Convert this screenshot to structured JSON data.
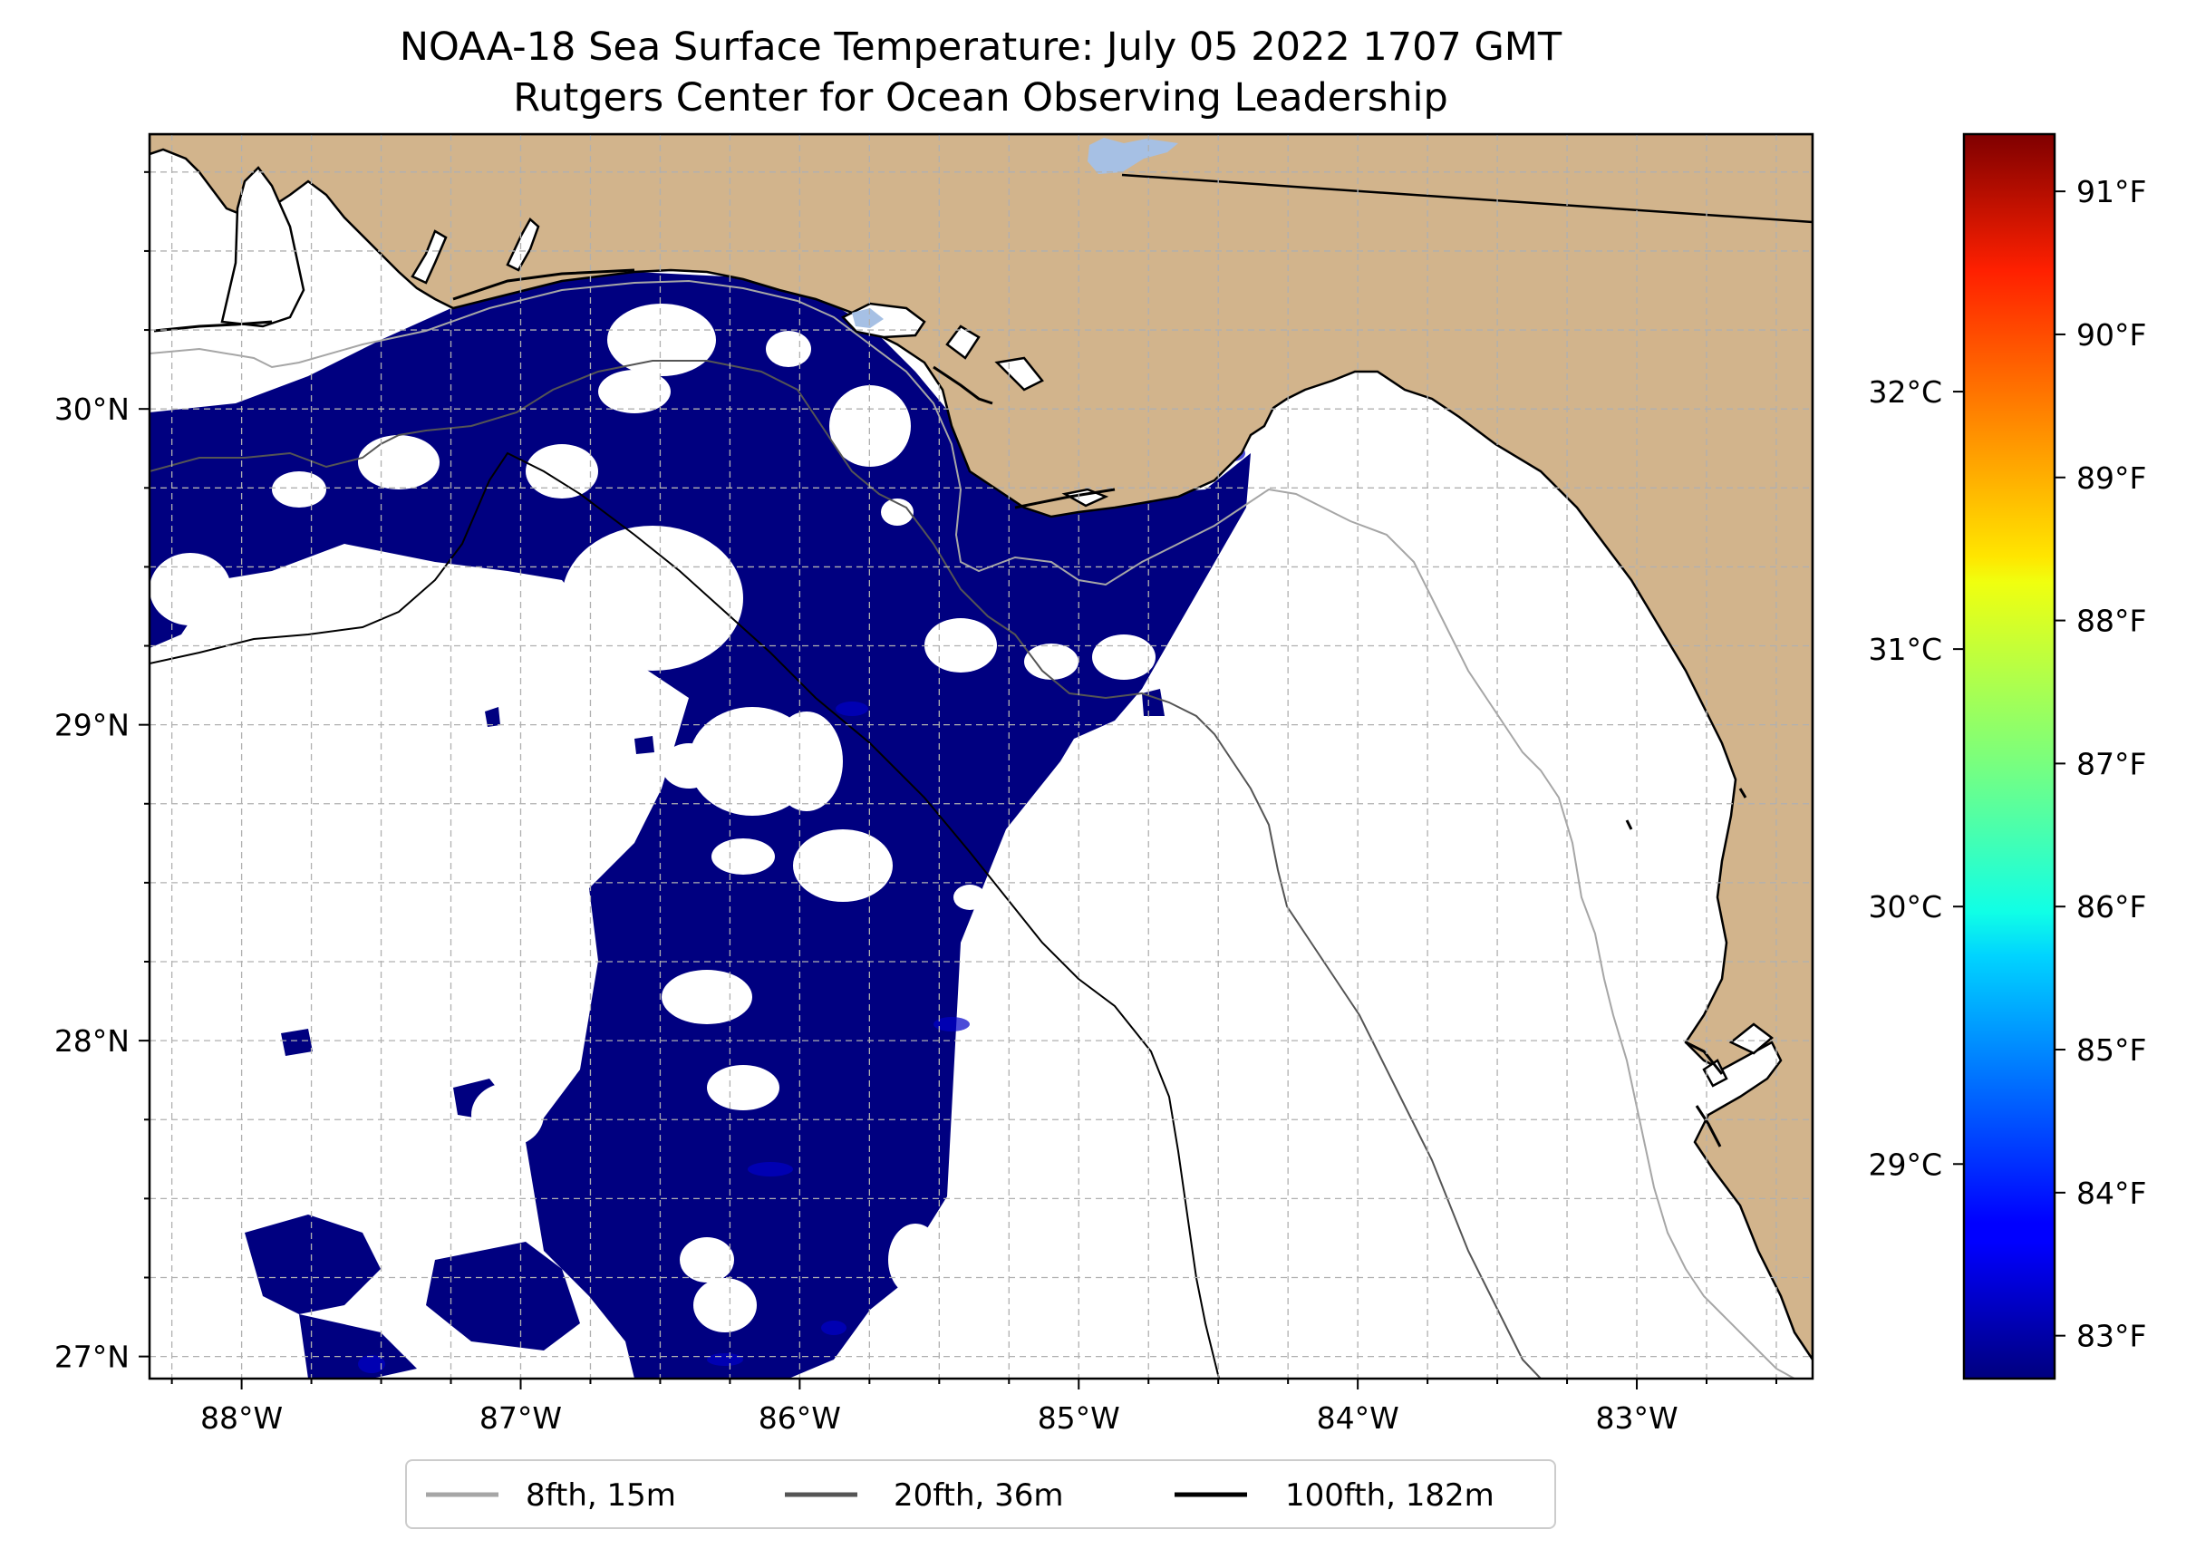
{
  "title": {
    "line1": "NOAA-18 Sea Surface Temperature: July 05 2022 1707 GMT",
    "line2": "Rutgers Center for Ocean Observing Leadership"
  },
  "map": {
    "lon_range": [
      -88.33,
      -82.37
    ],
    "lat_range": [
      26.93,
      30.87
    ],
    "x_ticks": [
      {
        "lon": -88,
        "label": "88°W"
      },
      {
        "lon": -87,
        "label": "87°W"
      },
      {
        "lon": -86,
        "label": "86°W"
      },
      {
        "lon": -85,
        "label": "85°W"
      },
      {
        "lon": -84,
        "label": "84°W"
      },
      {
        "lon": -83,
        "label": "83°W"
      }
    ],
    "y_ticks": [
      {
        "lat": 30,
        "label": "30°N"
      },
      {
        "lat": 29,
        "label": "29°N"
      },
      {
        "lat": 28,
        "label": "28°N"
      },
      {
        "lat": 27,
        "label": "27°N"
      }
    ],
    "gridlines": "dashed every 0.25°",
    "colors": {
      "land": "#d2b48c",
      "ocean_no_data": "#ffffff",
      "sst_dominant": "#000080",
      "lake": "#a6c0e4",
      "grid": "#b0b0b0"
    }
  },
  "legend": {
    "placement": "bottom-center",
    "items": [
      {
        "label": "8fth, 15m",
        "color": "#a6a6a6"
      },
      {
        "label": "20fth, 36m",
        "color": "#555555"
      },
      {
        "label": "100fth, 182m",
        "color": "#000000"
      }
    ]
  },
  "colorbar": {
    "colormap": "jet",
    "range_f": [
      82.7,
      91.4
    ],
    "fahrenheit_ticks": [
      {
        "value": 83,
        "label": "83°F"
      },
      {
        "value": 84,
        "label": "84°F"
      },
      {
        "value": 85,
        "label": "85°F"
      },
      {
        "value": 86,
        "label": "86°F"
      },
      {
        "value": 87,
        "label": "87°F"
      },
      {
        "value": 88,
        "label": "88°F"
      },
      {
        "value": 89,
        "label": "89°F"
      },
      {
        "value": 90,
        "label": "90°F"
      },
      {
        "value": 91,
        "label": "91°F"
      }
    ],
    "celsius_ticks": [
      {
        "value": 29,
        "label": "29°C"
      },
      {
        "value": 30,
        "label": "30°C"
      },
      {
        "value": 31,
        "label": "31°C"
      },
      {
        "value": 32,
        "label": "32°C"
      }
    ]
  }
}
